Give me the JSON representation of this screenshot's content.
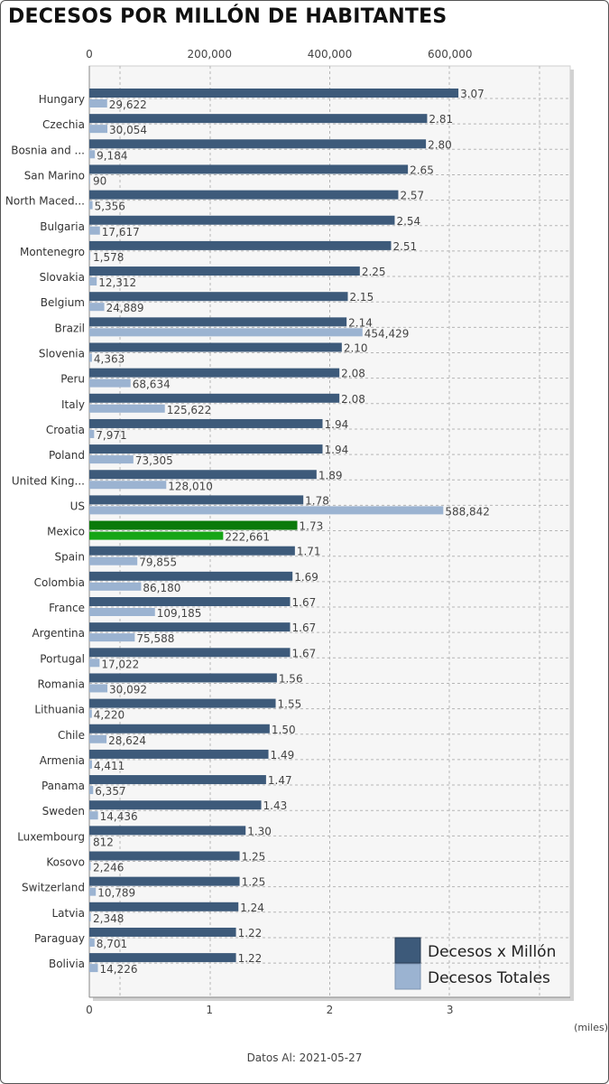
{
  "title": "DECESOS POR MILLÓN DE HABITANTES",
  "footer": "Datos Al: 2021-05-27",
  "colors": {
    "rate_bar": "#3d5a7a",
    "total_bar": "#9bb3d1",
    "highlight_rate_bar": "#0a7a0a",
    "highlight_total_bar": "#16a516",
    "plot_background": "#f6f6f6"
  },
  "chart_data": {
    "type": "bar",
    "orientation": "horizontal",
    "categories": [
      "Hungary",
      "Czechia",
      "Bosnia and ...",
      "San Marino",
      "North Maced...",
      "Bulgaria",
      "Montenegro",
      "Slovakia",
      "Belgium",
      "Brazil",
      "Slovenia",
      "Peru",
      "Italy",
      "Croatia",
      "Poland",
      "United King...",
      "US",
      "Mexico",
      "Spain",
      "Colombia",
      "France",
      "Argentina",
      "Portugal",
      "Romania",
      "Lithuania",
      "Chile",
      "Armenia",
      "Panama",
      "Sweden",
      "Luxembourg",
      "Kosovo",
      "Switzerland",
      "Latvia",
      "Paraguay",
      "Bolivia"
    ],
    "highlight_category": "Mexico",
    "series": [
      {
        "name": "Decesos x Millón",
        "axis": "bottom",
        "labels": [
          "3.07",
          "2.81",
          "2.80",
          "2.65",
          "2.57",
          "2.54",
          "2.51",
          "2.25",
          "2.15",
          "2.14",
          "2.10",
          "2.08",
          "2.08",
          "1.94",
          "1.94",
          "1.89",
          "1.78",
          "1.73",
          "1.71",
          "1.69",
          "1.67",
          "1.67",
          "1.67",
          "1.56",
          "1.55",
          "1.50",
          "1.49",
          "1.47",
          "1.43",
          "1.30",
          "1.25",
          "1.25",
          "1.24",
          "1.22",
          "1.22"
        ],
        "values": [
          3.07,
          2.81,
          2.8,
          2.65,
          2.57,
          2.54,
          2.51,
          2.25,
          2.15,
          2.14,
          2.1,
          2.08,
          2.08,
          1.94,
          1.94,
          1.89,
          1.78,
          1.73,
          1.71,
          1.69,
          1.67,
          1.67,
          1.67,
          1.56,
          1.55,
          1.5,
          1.49,
          1.47,
          1.43,
          1.3,
          1.25,
          1.25,
          1.24,
          1.22,
          1.22
        ]
      },
      {
        "name": "Decesos Totales",
        "axis": "top",
        "labels": [
          "29,622",
          "30,054",
          "9,184",
          "90",
          "5,356",
          "17,617",
          "1,578",
          "12,312",
          "24,889",
          "454,429",
          "4,363",
          "68,634",
          "125,622",
          "7,971",
          "73,305",
          "128,010",
          "588,842",
          "222,661",
          "79,855",
          "86,180",
          "109,185",
          "75,588",
          "17,022",
          "30,092",
          "4,220",
          "28,624",
          "4,411",
          "6,357",
          "14,436",
          "812",
          "2,246",
          "10,789",
          "2,348",
          "8,701",
          "14,226"
        ],
        "values": [
          29622,
          30054,
          9184,
          90,
          5356,
          17617,
          1578,
          12312,
          24889,
          454429,
          4363,
          68634,
          125622,
          7971,
          73305,
          128010,
          588842,
          222661,
          79855,
          86180,
          109185,
          75588,
          17022,
          30092,
          4220,
          28624,
          4411,
          6357,
          14436,
          812,
          2246,
          10789,
          2348,
          8701,
          14226
        ]
      }
    ],
    "top_axis": {
      "ticks": [
        0,
        200000,
        400000,
        600000
      ],
      "tick_labels": [
        "0",
        "200,000",
        "400,000",
        "600,000"
      ],
      "range": [
        0,
        800000
      ]
    },
    "bottom_axis": {
      "ticks": [
        0,
        1,
        2,
        3
      ],
      "tick_labels": [
        "0",
        "1",
        "2",
        "3"
      ],
      "range": [
        0,
        4
      ],
      "label": "(miles)"
    },
    "grid": true,
    "legend": {
      "position": "bottom-right",
      "entries": [
        "Decesos x Millón",
        "Decesos Totales"
      ]
    }
  }
}
